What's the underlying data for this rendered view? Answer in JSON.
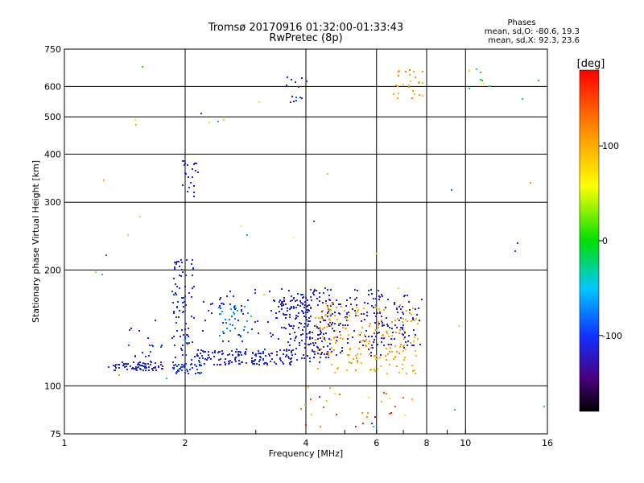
{
  "chart_data": {
    "type": "scatter",
    "title": "Tromsø 20170916 01:32:00-01:33:43",
    "subtitle": "RwPretec (8p)",
    "xlabel": "Frequency [MHz]",
    "ylabel": "Stationary phase Virtual Height [km]",
    "x_scale": "log",
    "y_scale": "log",
    "xlim": [
      1,
      16
    ],
    "ylim": [
      75,
      750
    ],
    "x_ticks": [
      1,
      2,
      4,
      6,
      8,
      10,
      16
    ],
    "x_tick_labels": [
      "1",
      "2",
      "4",
      "6",
      "8",
      "10",
      "16"
    ],
    "y_ticks": [
      75,
      100,
      200,
      300,
      400,
      500,
      600,
      750
    ],
    "y_tick_labels": [
      "75",
      "100",
      "200",
      "300",
      "400",
      "500",
      "600",
      "750"
    ],
    "grid": true,
    "stats": {
      "heading": "Phases",
      "line1": "mean, sd,O: -80.6, 19.3",
      "line2": "mean, sd,X:  92.3, 23.6"
    },
    "colorbar": {
      "label": "[deg]",
      "range": [
        -180,
        180
      ],
      "ticks": [
        100,
        0,
        -100
      ],
      "tick_labels": [
        "100",
        "0",
        "-100"
      ]
    },
    "clusters": [
      {
        "x0": 1.28,
        "x1": 1.75,
        "y0": 110,
        "y1": 116,
        "n": 70,
        "phase": -112,
        "spread": 8
      },
      {
        "x0": 1.4,
        "x1": 1.75,
        "y0": 116,
        "y1": 150,
        "n": 18,
        "phase": -105,
        "spread": 12
      },
      {
        "x0": 1.85,
        "x1": 2.1,
        "y0": 108,
        "y1": 215,
        "n": 90,
        "phase": -108,
        "spread": 10
      },
      {
        "x0": 1.85,
        "x1": 2.2,
        "y0": 108,
        "y1": 114,
        "n": 40,
        "phase": -100,
        "spread": 8
      },
      {
        "x0": 2.1,
        "x1": 3.7,
        "y0": 114,
        "y1": 125,
        "n": 150,
        "phase": -110,
        "spread": 10
      },
      {
        "x0": 2.4,
        "x1": 2.9,
        "y0": 135,
        "y1": 165,
        "n": 35,
        "phase": -72,
        "spread": 10
      },
      {
        "x0": 2.2,
        "x1": 3.8,
        "y0": 130,
        "y1": 180,
        "n": 60,
        "phase": -115,
        "spread": 10
      },
      {
        "x0": 3.3,
        "x1": 4.1,
        "y0": 150,
        "y1": 168,
        "n": 50,
        "phase": -118,
        "spread": 8
      },
      {
        "x0": 3.6,
        "x1": 4.6,
        "y0": 115,
        "y1": 180,
        "n": 120,
        "phase": -112,
        "spread": 12
      },
      {
        "x0": 4.0,
        "x1": 6.2,
        "y0": 120,
        "y1": 180,
        "n": 130,
        "phase": -115,
        "spread": 12
      },
      {
        "x0": 4.2,
        "x1": 7.6,
        "y0": 108,
        "y1": 165,
        "n": 200,
        "phase": 105,
        "spread": 12
      },
      {
        "x0": 5.6,
        "x1": 7.8,
        "y0": 125,
        "y1": 175,
        "n": 80,
        "phase": -112,
        "spread": 10
      },
      {
        "x0": 3.55,
        "x1": 4.0,
        "y0": 540,
        "y1": 650,
        "n": 14,
        "phase": -110,
        "spread": 25
      },
      {
        "x0": 1.95,
        "x1": 2.15,
        "y0": 310,
        "y1": 390,
        "n": 24,
        "phase": -110,
        "spread": 8
      },
      {
        "x0": 6.5,
        "x1": 7.8,
        "y0": 560,
        "y1": 670,
        "n": 26,
        "phase": 110,
        "spread": 25
      },
      {
        "x0": 10.0,
        "x1": 11.5,
        "y0": 590,
        "y1": 670,
        "n": 8,
        "phase": 20,
        "spread": 70
      },
      {
        "x0": 3.8,
        "x1": 7.5,
        "y0": 78,
        "y1": 100,
        "n": 30,
        "phase": 130,
        "spread": 60
      },
      {
        "x0": 1.1,
        "x1": 16.0,
        "y0": 78,
        "y1": 700,
        "n": 40,
        "phase": 0,
        "spread": 120
      }
    ]
  }
}
